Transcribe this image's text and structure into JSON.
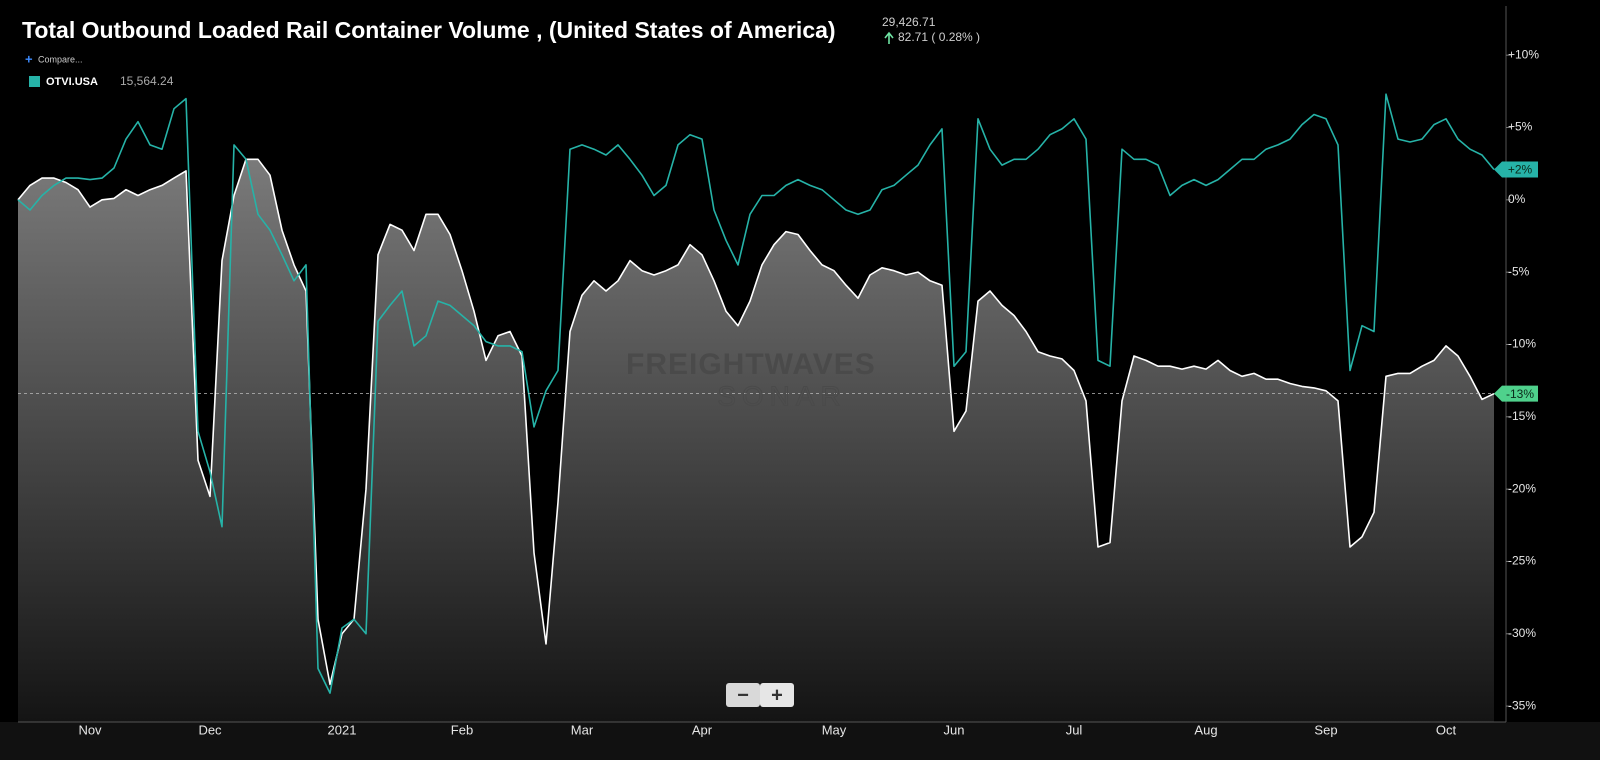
{
  "chart_data": {
    "type": "line",
    "title": "Total Outbound Loaded Rail Container Volume , (United States of America)",
    "header": {
      "value": "29,426.71",
      "change": "82.71 ( 0.28% )"
    },
    "compare": "Compare...",
    "watermark": {
      "line1": "FREIGHTWAVES",
      "line2": "SONAR"
    },
    "controls": [
      "−",
      "+"
    ],
    "grid": false,
    "ylim": [
      -36.1,
      13.4
    ],
    "yticks": [
      {
        "value": 10,
        "label": "+10%"
      },
      {
        "value": 5,
        "label": "+5%"
      },
      {
        "value": 0,
        "label": "0%"
      },
      {
        "value": -5,
        "label": "-5%"
      },
      {
        "value": -10,
        "label": "-10%"
      },
      {
        "value": -15,
        "label": "-15%"
      },
      {
        "value": -20,
        "label": "-20%"
      },
      {
        "value": -25,
        "label": "-25%"
      },
      {
        "value": -30,
        "label": "-30%"
      },
      {
        "value": -35,
        "label": "-35%"
      }
    ],
    "categories": [
      null,
      null,
      null,
      null,
      null,
      null,
      "Nov",
      null,
      null,
      null,
      null,
      null,
      null,
      null,
      null,
      null,
      "Dec",
      null,
      null,
      null,
      null,
      null,
      null,
      null,
      null,
      null,
      null,
      "2021",
      null,
      null,
      null,
      null,
      null,
      null,
      null,
      null,
      null,
      "Feb",
      null,
      null,
      null,
      null,
      null,
      null,
      null,
      null,
      null,
      "Mar",
      null,
      null,
      null,
      null,
      null,
      null,
      null,
      null,
      null,
      "Apr",
      null,
      null,
      null,
      null,
      null,
      null,
      null,
      null,
      null,
      null,
      "May",
      null,
      null,
      null,
      null,
      null,
      null,
      null,
      null,
      null,
      "Jun",
      null,
      null,
      null,
      null,
      null,
      null,
      null,
      null,
      null,
      "Jul",
      null,
      null,
      null,
      null,
      null,
      null,
      null,
      null,
      null,
      null,
      "Aug",
      null,
      null,
      null,
      null,
      null,
      null,
      null,
      null,
      null,
      "Sep",
      null,
      null,
      null,
      null,
      null,
      null,
      null,
      null,
      null,
      "Oct",
      null,
      null,
      null,
      null
    ],
    "series": [
      {
        "color": "#ffffff",
        "area": true,
        "last_label": "-13%",
        "label_color": "#4fd18c",
        "values": [
          0,
          1,
          1.5,
          1.5,
          1.2,
          0.7,
          -0.5,
          0,
          0.1,
          0.7,
          0.3,
          0.7,
          1,
          1.5,
          2,
          -18,
          -20.5,
          -4.2,
          0.3,
          2.8,
          2.8,
          1.7,
          -2.1,
          -4.5,
          -6.3,
          -29,
          -33.5,
          -30,
          -29,
          -20,
          -3.8,
          -1.7,
          -2.1,
          -3.5,
          -1,
          -1,
          -2.4,
          -4.9,
          -7.7,
          -11.1,
          -9.4,
          -9.1,
          -10.8,
          -24.4,
          -30.7,
          -20.9,
          -9.1,
          -6.6,
          -5.6,
          -6.3,
          -5.6,
          -4.2,
          -4.9,
          -5.2,
          -4.9,
          -4.5,
          -3.1,
          -3.8,
          -5.6,
          -7.7,
          -8.7,
          -7,
          -4.5,
          -3.1,
          -2.2,
          -2.4,
          -3.5,
          -4.5,
          -4.9,
          -5.9,
          -6.8,
          -5.2,
          -4.7,
          -4.9,
          -5.2,
          -5,
          -5.6,
          -5.9,
          -16,
          -14.6,
          -7,
          -6.3,
          -7.3,
          -8,
          -9.1,
          -10.5,
          -10.8,
          -11,
          -11.8,
          -13.9,
          -24,
          -23.7,
          -13.9,
          -10.8,
          -11.1,
          -11.5,
          -11.5,
          -11.7,
          -11.5,
          -11.7,
          -11.1,
          -11.8,
          -12.2,
          -12,
          -12.4,
          -12.4,
          -12.7,
          -12.9,
          -13,
          -13.2,
          -13.9,
          -24,
          -23.3,
          -21.6,
          -12.2,
          -12,
          -12,
          -11.5,
          -11.1,
          -10.1,
          -10.8,
          -12.2,
          -13.8,
          -13.4
        ]
      },
      {
        "name": "OTVI.USA",
        "legend_value": "15,564.24",
        "color": "#26b3a8",
        "last_label": "+2%",
        "label_color": "#26b3a8",
        "values": [
          0,
          -0.7,
          0.3,
          1,
          1.5,
          1.5,
          1.4,
          1.5,
          2.2,
          4.2,
          5.4,
          3.8,
          3.5,
          6.3,
          7,
          -16,
          -18.8,
          -22.6,
          3.8,
          2.8,
          -1,
          -2.1,
          -3.8,
          -5.6,
          -4.5,
          -32.4,
          -34.1,
          -29.6,
          -29,
          -30,
          -8.4,
          -7.3,
          -6.3,
          -10.1,
          -9.4,
          -7,
          -7.3,
          -8,
          -8.7,
          -9.8,
          -10.1,
          -10.1,
          -10.5,
          -15.7,
          -13.2,
          -11.8,
          3.5,
          3.8,
          3.5,
          3.1,
          3.8,
          2.8,
          1.7,
          0.3,
          1,
          3.8,
          4.5,
          4.2,
          -0.7,
          -2.8,
          -4.5,
          -1,
          0.3,
          0.3,
          1,
          1.4,
          1,
          0.7,
          0,
          -0.7,
          -1,
          -0.7,
          0.7,
          1,
          1.7,
          2.4,
          3.8,
          4.9,
          -11.5,
          -10.5,
          5.6,
          3.5,
          2.4,
          2.8,
          2.8,
          3.5,
          4.5,
          4.9,
          5.6,
          4.2,
          -11.1,
          -11.5,
          3.5,
          2.8,
          2.8,
          2.4,
          0.3,
          1,
          1.4,
          1,
          1.4,
          2.1,
          2.8,
          2.8,
          3.5,
          3.8,
          4.2,
          5.2,
          5.9,
          5.6,
          3.8,
          -11.8,
          -8.7,
          -9.1,
          7.3,
          4.2,
          4,
          4.2,
          5.2,
          5.6,
          4.2,
          3.5,
          3.1,
          2.1
        ]
      }
    ]
  }
}
